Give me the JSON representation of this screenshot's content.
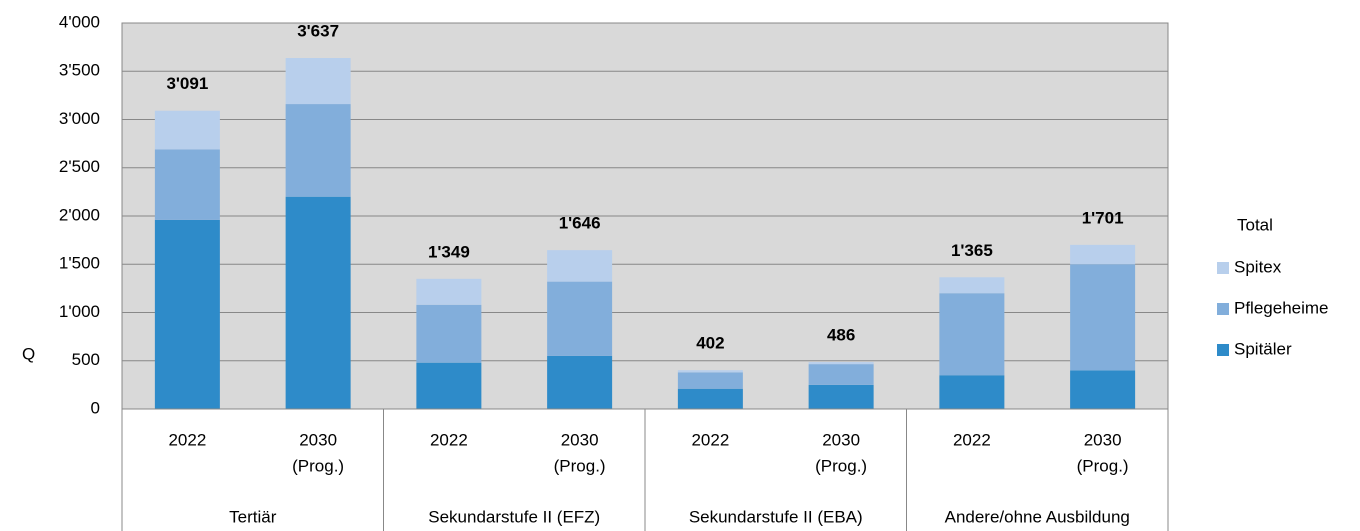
{
  "chart_data": {
    "type": "stacked_bar",
    "ylabel": "Q",
    "categories": [
      [
        "2022"
      ],
      [
        "2030",
        "(Prog.)"
      ],
      [
        "2022"
      ],
      [
        "2030",
        "(Prog.)"
      ],
      [
        "2022"
      ],
      [
        "2030",
        "(Prog.)"
      ],
      [
        "2022"
      ],
      [
        "2030",
        "(Prog.)"
      ]
    ],
    "groups": [
      "Tertiär",
      "Sekundarstufe II (EFZ)",
      "Sekundarstufe II (EBA)",
      "Andere/ohne Ausbildung"
    ],
    "series": [
      {
        "name": "Spitäler",
        "color": "#2e8bc9",
        "values": [
          1960,
          2200,
          480,
          550,
          210,
          250,
          350,
          400
        ]
      },
      {
        "name": "Pflegeheime",
        "color": "#82aedb",
        "values": [
          730,
          960,
          600,
          770,
          170,
          215,
          850,
          1100
        ]
      },
      {
        "name": "Spitex",
        "color": "#b8cfec",
        "values": [
          401,
          477,
          269,
          326,
          22,
          21,
          165,
          201
        ]
      }
    ],
    "total": {
      "name": "Total",
      "values": [
        3091,
        3637,
        1349,
        1646,
        402,
        486,
        1365,
        1701
      ],
      "value_labels": [
        "3'091",
        "3'637",
        "1'349",
        "1'646",
        "402",
        "486",
        "1'365",
        "1'701"
      ]
    },
    "ylim": [
      0,
      4000
    ],
    "yticks": [
      0,
      500,
      {
        "value": 1000,
        "label": "1'000"
      },
      {
        "value": 1500,
        "label": "1'500"
      },
      {
        "value": 2000,
        "label": "2'000"
      },
      {
        "value": 2500,
        "label": "2'500"
      },
      {
        "value": 3000,
        "label": "3'000"
      },
      {
        "value": 3500,
        "label": "3'500"
      },
      {
        "value": 4000,
        "label": "4'000"
      }
    ],
    "grid": true,
    "plot_background": "#d9d9d9",
    "legend": "right"
  }
}
